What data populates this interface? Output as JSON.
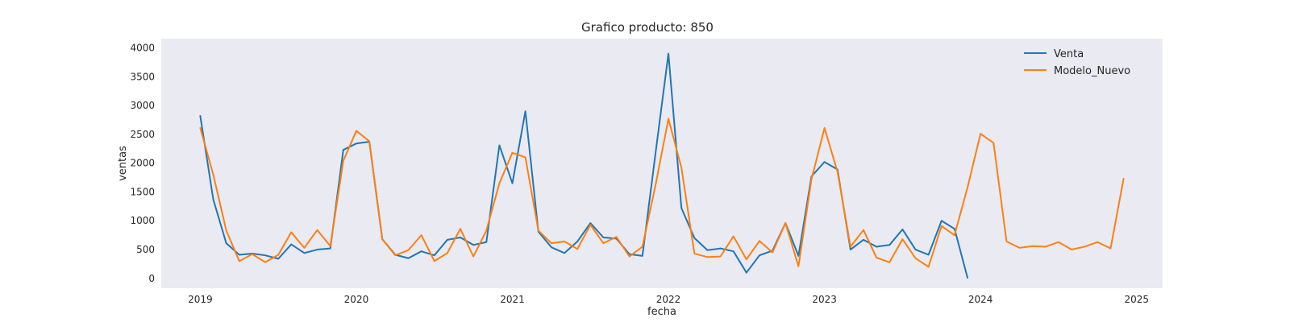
{
  "chart_data": {
    "type": "line",
    "title": "Grafico producto: 850",
    "xlabel": "fecha",
    "ylabel": "ventas",
    "x_start": "2019-01",
    "x_ticks": [
      "2019",
      "2020",
      "2021",
      "2022",
      "2023",
      "2024",
      "2025"
    ],
    "y_ticks": [
      "0",
      "500",
      "1000",
      "1500",
      "2000",
      "2500",
      "3000",
      "3500",
      "4000"
    ],
    "xlim": [
      "2018-10",
      "2025-03"
    ],
    "ylim": [
      -170,
      4160
    ],
    "grid": false,
    "legend": "top-right",
    "background": "#eaeaf2",
    "series": [
      {
        "name": "Venta",
        "color": "#1f77b4",
        "values": [
          2820,
          1370,
          610,
          410,
          430,
          400,
          340,
          590,
          440,
          500,
          520,
          2230,
          2340,
          2370,
          680,
          410,
          350,
          470,
          400,
          670,
          710,
          580,
          630,
          2310,
          1650,
          2900,
          810,
          540,
          440,
          640,
          960,
          710,
          690,
          420,
          390,
          2160,
          3900,
          1220,
          700,
          490,
          520,
          470,
          100,
          400,
          480,
          960,
          390,
          1770,
          2020,
          1890,
          500,
          670,
          550,
          580,
          850,
          500,
          410,
          1000,
          860,
          10
        ]
      },
      {
        "name": "Modelo_Nuevo",
        "color": "#ff7f0e",
        "values": [
          2610,
          1800,
          830,
          300,
          420,
          280,
          410,
          800,
          530,
          840,
          560,
          2040,
          2560,
          2380,
          680,
          400,
          490,
          750,
          300,
          440,
          860,
          380,
          830,
          1650,
          2180,
          2100,
          830,
          610,
          640,
          510,
          930,
          610,
          720,
          380,
          550,
          1610,
          2770,
          1920,
          430,
          370,
          380,
          730,
          330,
          650,
          450,
          960,
          210,
          1720,
          2610,
          1850,
          550,
          840,
          360,
          280,
          680,
          350,
          200,
          910,
          750,
          1580,
          2510,
          2350,
          640,
          530,
          560,
          550,
          630,
          500,
          550,
          630,
          520,
          1730
        ]
      }
    ]
  }
}
